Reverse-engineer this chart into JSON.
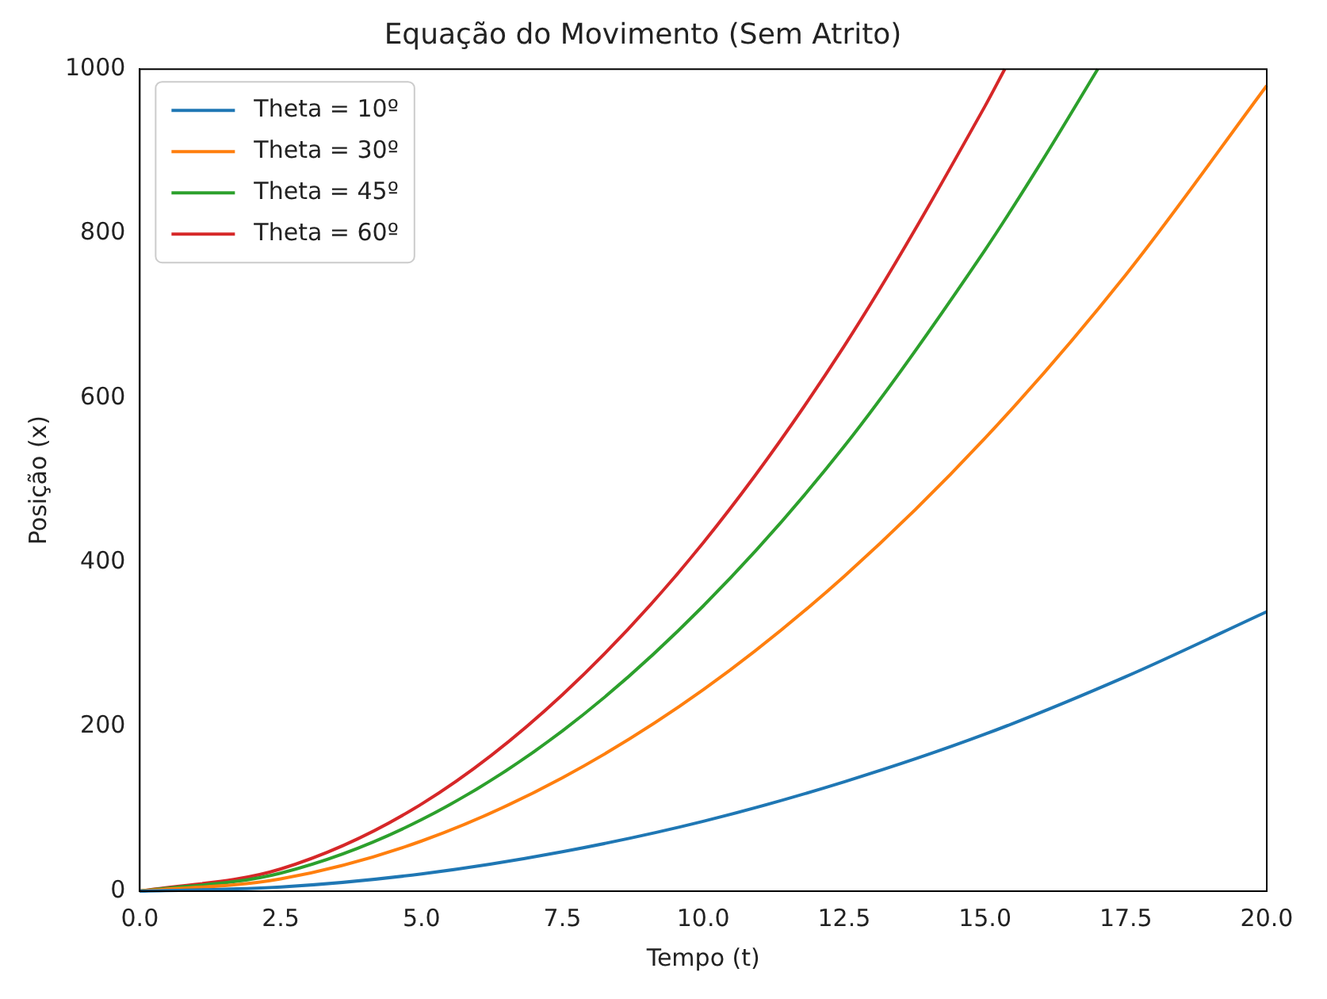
{
  "chart_data": {
    "type": "line",
    "title": "Equação do Movimento (Sem Atrito)",
    "xlabel": "Tempo (t)",
    "ylabel": "Posição (x)",
    "xlim": [
      0,
      20
    ],
    "ylim": [
      0,
      1000
    ],
    "xticks": [
      {
        "value": 0,
        "label": "0.0"
      },
      {
        "value": 2.5,
        "label": "2.5"
      },
      {
        "value": 5,
        "label": "5.0"
      },
      {
        "value": 7.5,
        "label": "7.5"
      },
      {
        "value": 10,
        "label": "10.0"
      },
      {
        "value": 12.5,
        "label": "12.5"
      },
      {
        "value": 15,
        "label": "15.0"
      },
      {
        "value": 17.5,
        "label": "17.5"
      },
      {
        "value": 20,
        "label": "20.0"
      }
    ],
    "yticks": [
      0,
      200,
      400,
      600,
      800,
      1000
    ],
    "grid": false,
    "legend": "top left",
    "line_style": "solid",
    "marker": "none",
    "series": [
      {
        "name": "Theta = 10º",
        "color": "#1f77b4",
        "x": [
          0,
          2.5,
          5,
          7.5,
          10,
          12.5,
          15,
          17.5,
          20
        ],
        "values": [
          0,
          5,
          21,
          48,
          85,
          133,
          191,
          261,
          340
        ]
      },
      {
        "name": "Theta = 30º",
        "color": "#ff7f0e",
        "x": [
          0,
          2.5,
          5,
          7.5,
          10,
          12.5,
          15,
          17.5,
          20
        ],
        "values": [
          0,
          15,
          61,
          138,
          245,
          383,
          551,
          750,
          980
        ]
      },
      {
        "name": "Theta = 45º",
        "color": "#2ca02c",
        "x": [
          0,
          2.5,
          5,
          7.5,
          10,
          12.5,
          15,
          16,
          17
        ],
        "values": [
          0,
          22,
          87,
          195,
          347,
          541,
          780,
          887,
          1000
        ]
      },
      {
        "name": "Theta = 60º",
        "color": "#d62728",
        "x": [
          0,
          2.5,
          5,
          7.5,
          10,
          12.5,
          15,
          15.35
        ],
        "values": [
          0,
          27,
          106,
          239,
          424,
          663,
          955,
          1000
        ]
      }
    ]
  }
}
